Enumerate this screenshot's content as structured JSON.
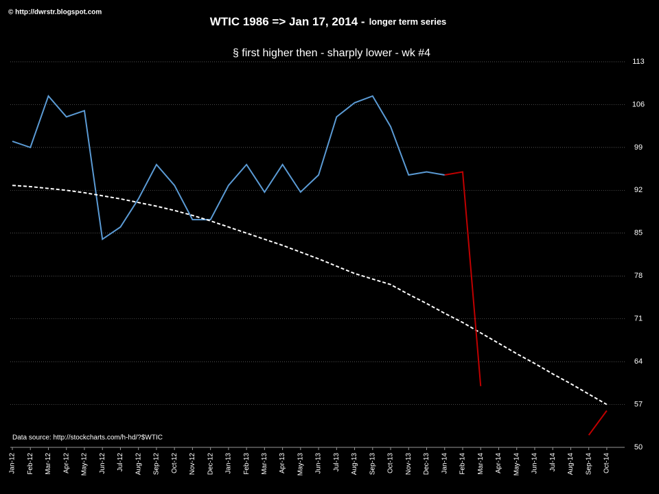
{
  "chart_data": {
    "type": "line",
    "title": "WTIC 1986 => Jan 17, 2014 -",
    "title_suffix": "longer term series",
    "subtitle": "§ first higher then - sharply lower - wk #4",
    "credit": "© http://dwrstr.blogspot.com",
    "source": "Data source: http://stockcharts.com/h-hd/?$WTIC",
    "categories": [
      "Jan-12",
      "Feb-12",
      "Mar-12",
      "Apr-12",
      "May-12",
      "Jun-12",
      "Jul-12",
      "Aug-12",
      "Sep-12",
      "Oct-12",
      "Nov-12",
      "Dec-12",
      "Jan-13",
      "Feb-13",
      "Mar-13",
      "Apr-13",
      "May-13",
      "Jun-13",
      "Jul-13",
      "Aug-13",
      "Sep-13",
      "Oct-13",
      "Nov-13",
      "Dec-13",
      "Jan-14",
      "Feb-14",
      "Mar-14",
      "Apr-14",
      "May-14",
      "Jun-14",
      "Jul-14",
      "Aug-14",
      "Sep-14",
      "Oct-14"
    ],
    "series": [
      {
        "color": "#5b9bd5",
        "style": "solid",
        "values": [
          100,
          99,
          107.4,
          104,
          105,
          84,
          86,
          90.6,
          96.2,
          92.8,
          87.2,
          87.2,
          92.8,
          96.2,
          91.7,
          96.2,
          91.7,
          94.5,
          104,
          106.3,
          107.4,
          102.4,
          94.5,
          95,
          94.5,
          null,
          null,
          null,
          null,
          null,
          null,
          null,
          null,
          null
        ]
      },
      {
        "color": "#ffffff",
        "style": "dashed",
        "values": [
          92.8,
          92.6,
          92.3,
          92.0,
          91.6,
          91.1,
          90.6,
          90.0,
          89.4,
          88.7,
          87.9,
          87.0,
          86.0,
          85.0,
          84.0,
          83.0,
          81.9,
          80.8,
          79.6,
          78.4,
          77.5,
          76.6,
          75.0,
          73.5,
          71.9,
          70.4,
          68.7,
          67.0,
          65.3,
          63.7,
          62.0,
          60.4,
          58.7,
          57.0
        ]
      },
      {
        "color": "#c00000",
        "style": "solid",
        "values": [
          null,
          null,
          null,
          null,
          null,
          null,
          null,
          null,
          null,
          null,
          null,
          null,
          null,
          null,
          null,
          null,
          null,
          null,
          null,
          null,
          null,
          null,
          null,
          null,
          94.5,
          95,
          60,
          null,
          null,
          null,
          null,
          null,
          52,
          56
        ]
      }
    ],
    "ylim": [
      50,
      113
    ],
    "yticks": [
      50,
      57,
      64,
      71,
      78,
      85,
      92,
      99,
      106,
      113
    ],
    "grid": true
  }
}
